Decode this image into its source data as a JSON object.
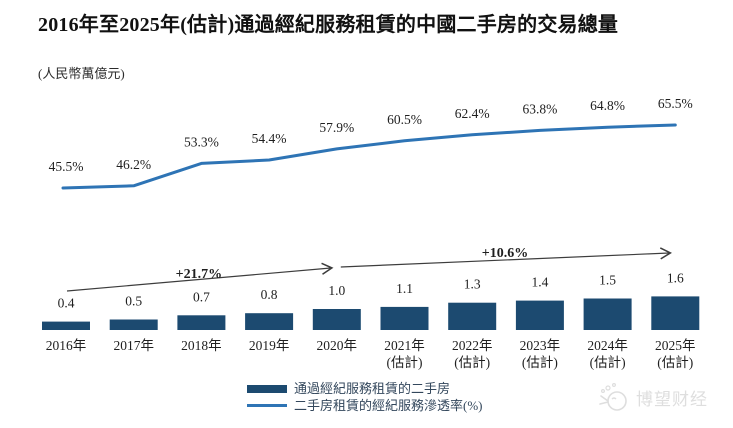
{
  "chart_data": {
    "type": "combo-bar-line",
    "title": "2016年至2025年(估計)通過經紀服務租賃的中國二手房的交易總量",
    "unit": "(人民幣萬億元)",
    "grid": false,
    "legend_position": "bottom-center",
    "categories": [
      {
        "label": "2016年",
        "sublabel": ""
      },
      {
        "label": "2017年",
        "sublabel": ""
      },
      {
        "label": "2018年",
        "sublabel": ""
      },
      {
        "label": "2019年",
        "sublabel": ""
      },
      {
        "label": "2020年",
        "sublabel": ""
      },
      {
        "label": "2021年",
        "sublabel": "(估計)"
      },
      {
        "label": "2022年",
        "sublabel": "(估計)"
      },
      {
        "label": "2023年",
        "sublabel": "(估計)"
      },
      {
        "label": "2024年",
        "sublabel": "(估計)"
      },
      {
        "label": "2025年",
        "sublabel": "(估計)"
      }
    ],
    "series": [
      {
        "name": "通過經紀服務租賃的二手房",
        "type": "bar",
        "unit": "人民幣萬億元",
        "values": [
          0.4,
          0.5,
          0.7,
          0.8,
          1.0,
          1.1,
          1.3,
          1.4,
          1.5,
          1.6
        ]
      },
      {
        "name": "二手房租賃的經紀服務滲透率(%)",
        "type": "line",
        "unit": "%",
        "values": [
          45.5,
          46.2,
          53.3,
          54.4,
          57.9,
          60.5,
          62.4,
          63.8,
          64.8,
          65.5
        ]
      }
    ],
    "annotations": [
      {
        "label": "+21.7%",
        "from_index": 0,
        "to_index": 4
      },
      {
        "label": "+10.6%",
        "from_index": 4,
        "to_index": 9
      }
    ]
  },
  "colors": {
    "bar": "#1c4a70",
    "line": "#2e74b5",
    "arrow": "#3d3d3d",
    "label_text": "#1f1f1f",
    "title_text": "#111111",
    "watermark": "#dedede"
  },
  "watermark": {
    "text": "博望财经",
    "icon": "whale-logo"
  }
}
